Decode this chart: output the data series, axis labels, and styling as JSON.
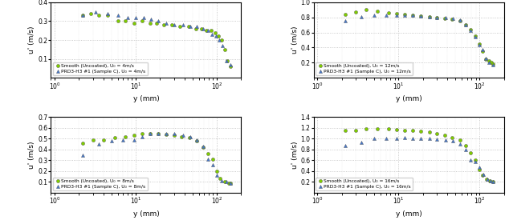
{
  "subplots": [
    {
      "ylabel": "u' (m/s)",
      "xlabel": "y (mm)",
      "ylim": [
        0,
        0.4
      ],
      "yticks": [
        0.1,
        0.2,
        0.3,
        0.4
      ],
      "legend1": "Smooth (Uncoated), U₀ = 4m/s",
      "legend2": "PRD3-H3 #1 (Sample C), U₀ = 4m/s",
      "smooth_x": [
        2.2,
        2.8,
        3.5,
        4.5,
        6.0,
        7.5,
        9.5,
        12.0,
        15.0,
        18.0,
        22.0,
        28.0,
        35.0,
        45.0,
        55.0,
        65.0,
        75.0,
        85.0,
        95.0,
        105.0,
        115.0,
        125.0,
        135.0,
        148.0
      ],
      "smooth_y": [
        0.33,
        0.34,
        0.33,
        0.33,
        0.3,
        0.3,
        0.29,
        0.3,
        0.29,
        0.29,
        0.28,
        0.28,
        0.27,
        0.27,
        0.26,
        0.26,
        0.25,
        0.25,
        0.24,
        0.22,
        0.2,
        0.15,
        0.09,
        0.06
      ],
      "coated_x": [
        2.2,
        3.2,
        4.5,
        6.0,
        8.0,
        10.0,
        12.5,
        15.5,
        19.0,
        24.0,
        30.0,
        38.0,
        47.0,
        57.0,
        67.0,
        77.0,
        88.0,
        98.0,
        108.0,
        118.0,
        130.0,
        148.0
      ],
      "coated_y": [
        0.33,
        0.35,
        0.34,
        0.33,
        0.32,
        0.32,
        0.32,
        0.31,
        0.3,
        0.29,
        0.28,
        0.28,
        0.27,
        0.27,
        0.26,
        0.25,
        0.23,
        0.22,
        0.2,
        0.17,
        0.09,
        0.07
      ]
    },
    {
      "ylabel": "u' (m/s)",
      "xlabel": "y (mm)",
      "ylim": [
        0,
        1.0
      ],
      "yticks": [
        0.2,
        0.4,
        0.6,
        0.8,
        1.0
      ],
      "legend1": "Smooth (Uncoated), U₀ = 12m/s",
      "legend2": "PRD3-H3 #1 (Sample C), U₀ = 12m/s",
      "smooth_x": [
        2.2,
        3.0,
        4.0,
        5.5,
        7.5,
        9.5,
        12.0,
        15.0,
        19.0,
        24.0,
        30.0,
        37.0,
        46.0,
        57.0,
        68.0,
        78.0,
        89.0,
        99.0,
        110.0,
        120.0,
        130.0,
        140.0,
        148.0
      ],
      "smooth_y": [
        0.84,
        0.87,
        0.9,
        0.88,
        0.86,
        0.85,
        0.84,
        0.83,
        0.82,
        0.81,
        0.8,
        0.79,
        0.78,
        0.75,
        0.7,
        0.64,
        0.55,
        0.45,
        0.35,
        0.25,
        0.22,
        0.2,
        0.18
      ],
      "coated_x": [
        2.2,
        3.5,
        5.0,
        7.0,
        9.5,
        12.0,
        15.0,
        19.0,
        24.0,
        30.0,
        38.0,
        47.0,
        57.0,
        67.0,
        77.0,
        88.0,
        99.0,
        110.0,
        120.0,
        132.0,
        145.0
      ],
      "coated_y": [
        0.75,
        0.81,
        0.83,
        0.83,
        0.83,
        0.83,
        0.83,
        0.82,
        0.81,
        0.8,
        0.8,
        0.79,
        0.76,
        0.7,
        0.63,
        0.54,
        0.44,
        0.37,
        0.26,
        0.2,
        0.17
      ]
    },
    {
      "ylabel": "u' (m/s)",
      "xlabel": "y (mm)",
      "ylim": [
        0,
        0.7
      ],
      "yticks": [
        0.1,
        0.2,
        0.3,
        0.4,
        0.5,
        0.6,
        0.7
      ],
      "legend1": "Smooth (Uncoated), U₀ = 8m/s",
      "legend2": "PRD3-H3 #1 (Sample C), U₀ = 8m/s",
      "smooth_x": [
        2.2,
        3.0,
        4.0,
        5.5,
        7.5,
        9.5,
        12.0,
        15.0,
        19.0,
        24.0,
        30.0,
        37.0,
        46.0,
        57.0,
        68.0,
        78.0,
        89.0,
        99.0,
        110.0,
        125.0,
        140.0,
        148.0
      ],
      "smooth_y": [
        0.46,
        0.49,
        0.49,
        0.51,
        0.52,
        0.53,
        0.55,
        0.55,
        0.55,
        0.54,
        0.53,
        0.52,
        0.51,
        0.48,
        0.42,
        0.36,
        0.31,
        0.2,
        0.13,
        0.1,
        0.09,
        0.09
      ],
      "coated_x": [
        2.2,
        3.5,
        5.0,
        7.0,
        9.5,
        12.0,
        15.0,
        19.0,
        24.0,
        30.0,
        38.0,
        47.0,
        57.0,
        67.0,
        78.0,
        89.0,
        100.0,
        115.0,
        132.0,
        148.0
      ],
      "coated_y": [
        0.35,
        0.45,
        0.48,
        0.49,
        0.49,
        0.52,
        0.55,
        0.55,
        0.55,
        0.55,
        0.53,
        0.52,
        0.49,
        0.43,
        0.31,
        0.26,
        0.16,
        0.11,
        0.1,
        0.09
      ]
    },
    {
      "ylabel": "u' (m/s)",
      "xlabel": "y (mm)",
      "ylim": [
        0,
        1.4
      ],
      "yticks": [
        0.2,
        0.4,
        0.6,
        0.8,
        1.0,
        1.2,
        1.4
      ],
      "legend1": "Smooth (Uncoated), U₀ = 16m/s",
      "legend2": "PRD3-H3 #1 (Sample C), U₀ = 16m/s",
      "smooth_x": [
        2.2,
        3.0,
        4.0,
        5.5,
        7.5,
        9.5,
        12.0,
        15.0,
        19.0,
        24.0,
        30.0,
        37.0,
        46.0,
        57.0,
        68.0,
        78.0,
        89.0,
        99.0,
        110.0,
        122.0,
        135.0,
        148.0
      ],
      "smooth_y": [
        1.15,
        1.15,
        1.18,
        1.18,
        1.18,
        1.17,
        1.16,
        1.15,
        1.14,
        1.13,
        1.1,
        1.07,
        1.02,
        0.97,
        0.87,
        0.74,
        0.6,
        0.42,
        0.33,
        0.25,
        0.22,
        0.2
      ],
      "coated_x": [
        2.2,
        3.5,
        5.0,
        7.0,
        9.5,
        12.0,
        15.0,
        19.0,
        24.0,
        30.0,
        38.0,
        47.0,
        57.0,
        67.0,
        78.0,
        89.0,
        100.0,
        112.0,
        125.0,
        138.0,
        148.0
      ],
      "coated_y": [
        0.87,
        0.93,
        1.0,
        1.01,
        1.01,
        1.02,
        1.0,
        1.0,
        1.0,
        0.99,
        0.98,
        0.96,
        0.9,
        0.8,
        0.6,
        0.58,
        0.47,
        0.34,
        0.25,
        0.22,
        0.2
      ]
    }
  ],
  "smooth_color": "#7FCC00",
  "coated_color": "#4477CC",
  "smooth_marker": "o",
  "coated_marker": "^",
  "marker_size": 3.0,
  "bg_color": "#ffffff",
  "grid_color": "#bbbbbb"
}
